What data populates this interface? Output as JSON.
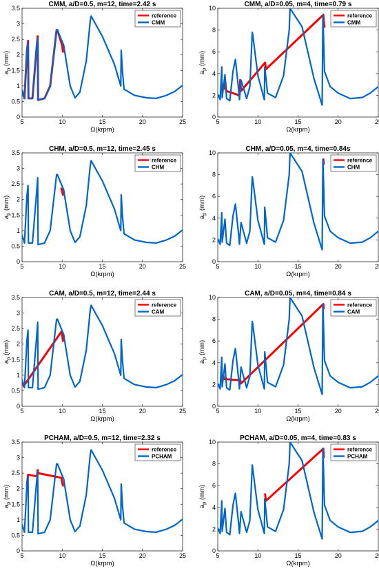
{
  "chart_data": [
    {
      "type": "line",
      "title": "CMM, a/D=0.5, m=12, time=2.42 s",
      "xlabel": "Ω(krpm)",
      "ylabel": "a_p (mm)",
      "xlim": [
        5,
        25
      ],
      "ylim": [
        0,
        3.5
      ],
      "xticks": [
        5,
        10,
        15,
        20,
        25
      ],
      "yticks": [
        0,
        0.5,
        1,
        1.5,
        2,
        2.5,
        3,
        3.5
      ],
      "grid": false,
      "legend_position": "top-right",
      "series": [
        {
          "name": "reference",
          "color": "#ff0000",
          "x": [
            5.0,
            5.3,
            5.6,
            5.75,
            5.8,
            6.3,
            6.8,
            6.95,
            7.0,
            7.8,
            8.5,
            9.3,
            9.4,
            10.0,
            10.05,
            10.1
          ],
          "y": [
            0.85,
            0.6,
            2.1,
            2.45,
            0.6,
            0.6,
            2.2,
            2.6,
            0.55,
            0.6,
            1.0,
            2.8,
            2.8,
            2.3,
            2.2,
            2.1
          ]
        },
        {
          "name": "CMM",
          "color": "#0066cc",
          "x": [
            5.0,
            5.3,
            5.6,
            5.75,
            5.8,
            6.3,
            6.8,
            6.95,
            7.0,
            7.8,
            8.5,
            9.3,
            9.4,
            10.2,
            10.25,
            11.0,
            11.6,
            12.2,
            13.0,
            13.5,
            13.6,
            15.0,
            16.5,
            17.3,
            17.35,
            17.5,
            17.7,
            19.0,
            20.5,
            21.7,
            23.0,
            24.0,
            25.0
          ],
          "y": [
            0.85,
            0.6,
            2.1,
            2.4,
            0.6,
            0.6,
            2.2,
            2.55,
            0.55,
            0.6,
            1.0,
            2.8,
            2.8,
            2.3,
            2.2,
            1.0,
            0.62,
            0.8,
            1.8,
            3.1,
            3.25,
            2.6,
            1.7,
            1.0,
            2.15,
            1.5,
            0.9,
            0.7,
            0.62,
            0.6,
            0.7,
            0.82,
            1.02
          ]
        }
      ]
    },
    {
      "type": "line",
      "title": "CMM, a/D=0.05, m=4, time=0.79 s",
      "xlabel": "Ω(krpm)",
      "ylabel": "a_p (mm)",
      "xlim": [
        5,
        25
      ],
      "ylim": [
        0,
        10
      ],
      "xticks": [
        5,
        10,
        15,
        20,
        25
      ],
      "yticks": [
        0,
        2,
        4,
        6,
        8,
        10
      ],
      "grid": false,
      "legend_position": "top-right",
      "series": [
        {
          "name": "reference",
          "color": "#ff0000",
          "x": [
            5.55,
            5.7,
            5.8,
            5.95,
            6.05,
            7.7,
            7.8,
            7.9,
            10.9,
            11.0,
            18.15,
            18.2,
            18.3
          ],
          "y": [
            2.5,
            3.0,
            2.6,
            3.2,
            2.4,
            2.0,
            3.4,
            2.4,
            5.0,
            4.4,
            9.4,
            8.8,
            8.3
          ]
        },
        {
          "name": "CMM",
          "color": "#0066cc",
          "x": [
            5.0,
            5.3,
            5.5,
            5.55,
            5.9,
            6.1,
            6.5,
            6.9,
            7.2,
            7.6,
            7.7,
            7.9,
            8.6,
            9.0,
            9.3,
            9.35,
            10.0,
            10.8,
            10.85,
            11.2,
            12.2,
            13.2,
            13.9,
            14.0,
            15.5,
            17.0,
            18.0,
            18.1,
            18.3,
            19.0,
            20.0,
            21.5,
            23.0,
            24.0,
            25.0
          ],
          "y": [
            2.1,
            1.6,
            4.6,
            1.8,
            3.9,
            1.7,
            1.5,
            4.2,
            5.3,
            2.5,
            1.6,
            3.4,
            1.7,
            2.8,
            7.8,
            7.6,
            3.8,
            1.6,
            4.6,
            2.2,
            1.8,
            3.8,
            8.0,
            10.0,
            8.3,
            3.5,
            1.1,
            9.4,
            4.2,
            2.8,
            2.2,
            1.7,
            1.8,
            2.2,
            2.8
          ]
        }
      ]
    },
    {
      "type": "line",
      "title": "CHM, a/D=0.5, m=12, time=2.45 s",
      "xlabel": "Ω(krpm)",
      "ylabel": "a_p (mm)",
      "xlim": [
        5,
        25
      ],
      "ylim": [
        0,
        3.5
      ],
      "xticks": [
        5,
        10,
        15,
        20,
        25
      ],
      "yticks": [
        0,
        0.5,
        1,
        1.5,
        2,
        2.5,
        3,
        3.5
      ],
      "grid": false,
      "legend_position": "top-right",
      "series": [
        {
          "name": "reference",
          "color": "#ff0000",
          "x": [
            9.9,
            10.0,
            10.05,
            10.1
          ],
          "y": [
            2.35,
            2.25,
            2.2,
            2.15
          ]
        },
        {
          "name": "CHM",
          "color": "#0066cc",
          "x": [
            5.0,
            5.3,
            5.6,
            5.75,
            5.8,
            6.3,
            6.8,
            6.95,
            7.0,
            7.8,
            8.5,
            9.3,
            9.4,
            10.2,
            10.25,
            11.0,
            11.6,
            12.2,
            13.0,
            13.5,
            13.6,
            15.0,
            16.5,
            17.3,
            17.35,
            17.5,
            17.7,
            19.0,
            20.5,
            21.7,
            23.0,
            24.0,
            25.0
          ],
          "y": [
            0.85,
            0.6,
            2.1,
            2.45,
            0.6,
            0.6,
            2.2,
            2.7,
            0.55,
            0.6,
            1.0,
            2.8,
            2.8,
            2.3,
            2.2,
            1.0,
            0.62,
            0.8,
            1.8,
            3.1,
            3.25,
            2.6,
            1.7,
            1.0,
            2.15,
            1.5,
            0.9,
            0.7,
            0.62,
            0.6,
            0.7,
            0.82,
            1.02
          ]
        }
      ]
    },
    {
      "type": "line",
      "title": "CHM, a/D=0.05, m=4, time=0.84s",
      "xlabel": "Ω(krpm)",
      "ylabel": "a_p (mm)",
      "xlim": [
        5,
        25
      ],
      "ylim": [
        0,
        10
      ],
      "xticks": [
        5,
        10,
        15,
        20,
        25
      ],
      "yticks": [
        0,
        2,
        4,
        6,
        8,
        10
      ],
      "grid": false,
      "legend_position": "top-right",
      "series": [
        {
          "name": "reference",
          "color": "#ff0000",
          "x": [
            18.15,
            18.2
          ],
          "y": [
            9.4,
            9.0
          ]
        },
        {
          "name": "CHM",
          "color": "#0066cc",
          "x": [
            5.0,
            5.3,
            5.5,
            5.55,
            5.9,
            6.1,
            6.5,
            6.9,
            7.2,
            7.6,
            7.7,
            7.9,
            8.6,
            9.0,
            9.3,
            9.35,
            10.0,
            10.8,
            10.85,
            11.2,
            12.2,
            13.2,
            13.9,
            14.0,
            15.5,
            17.0,
            18.0,
            18.1,
            18.3,
            19.0,
            20.0,
            21.5,
            23.0,
            24.0,
            25.0
          ],
          "y": [
            2.1,
            1.6,
            4.5,
            1.8,
            3.9,
            1.7,
            1.5,
            4.2,
            5.3,
            2.5,
            1.6,
            3.6,
            1.7,
            2.8,
            7.8,
            7.6,
            3.8,
            1.6,
            5.0,
            2.2,
            1.8,
            3.8,
            8.0,
            10.0,
            8.3,
            3.5,
            1.1,
            9.4,
            4.2,
            2.8,
            2.2,
            1.7,
            1.8,
            2.2,
            2.8
          ]
        }
      ]
    },
    {
      "type": "line",
      "title": "CAM, a/D=0.5, m=12, time=2.44 s",
      "xlabel": "Ω(krpm)",
      "ylabel": "a_p (mm)",
      "xlim": [
        5,
        25
      ],
      "ylim": [
        0,
        3.5
      ],
      "xticks": [
        5,
        10,
        15,
        20,
        25
      ],
      "yticks": [
        0,
        0.5,
        1,
        1.5,
        2,
        2.5,
        3,
        3.5
      ],
      "grid": false,
      "legend_position": "top-right",
      "series": [
        {
          "name": "reference",
          "color": "#ff0000",
          "x": [
            5.1,
            5.2,
            9.9,
            10.0,
            10.05,
            10.1
          ],
          "y": [
            0.75,
            0.65,
            2.4,
            2.3,
            2.2,
            2.1
          ]
        },
        {
          "name": "CAM",
          "color": "#0066cc",
          "x": [
            5.0,
            5.3,
            5.6,
            5.75,
            5.8,
            6.3,
            6.8,
            6.95,
            7.0,
            7.8,
            8.5,
            9.3,
            9.4,
            10.2,
            10.25,
            11.0,
            11.6,
            12.2,
            13.0,
            13.5,
            13.6,
            15.0,
            16.5,
            17.3,
            17.35,
            17.5,
            17.7,
            19.0,
            20.5,
            21.7,
            23.0,
            24.0,
            25.0
          ],
          "y": [
            0.85,
            0.6,
            2.1,
            2.45,
            0.6,
            0.6,
            2.2,
            2.7,
            0.55,
            0.6,
            1.0,
            2.8,
            2.8,
            2.3,
            2.2,
            1.0,
            0.62,
            0.8,
            1.8,
            3.1,
            3.25,
            2.6,
            1.7,
            1.0,
            2.15,
            1.5,
            0.9,
            0.7,
            0.62,
            0.6,
            0.7,
            0.82,
            1.02
          ]
        }
      ]
    },
    {
      "type": "line",
      "title": "CAM, a/D=0.05, m=4, time=0.84 s",
      "xlabel": "Ω(krpm)",
      "ylabel": "a_p (mm)",
      "xlim": [
        5,
        25
      ],
      "ylim": [
        0,
        10
      ],
      "xticks": [
        5,
        10,
        15,
        20,
        25
      ],
      "yticks": [
        0,
        2,
        4,
        6,
        8,
        10
      ],
      "grid": false,
      "legend_position": "top-right",
      "series": [
        {
          "name": "reference",
          "color": "#ff0000",
          "x": [
            5.7,
            5.8,
            7.8,
            7.9,
            18.15,
            18.2
          ],
          "y": [
            2.8,
            2.5,
            2.4,
            2.1,
            9.4,
            9.0
          ]
        },
        {
          "name": "CAM",
          "color": "#0066cc",
          "x": [
            5.0,
            5.3,
            5.5,
            5.55,
            5.9,
            6.1,
            6.5,
            6.9,
            7.2,
            7.6,
            7.7,
            7.9,
            8.6,
            9.0,
            9.3,
            9.35,
            10.0,
            10.8,
            10.85,
            11.2,
            12.2,
            13.2,
            13.9,
            14.0,
            15.5,
            17.0,
            18.0,
            18.1,
            18.3,
            19.0,
            20.0,
            21.5,
            23.0,
            24.0,
            25.0
          ],
          "y": [
            2.1,
            1.6,
            4.5,
            1.8,
            3.9,
            1.7,
            1.5,
            4.2,
            5.3,
            2.5,
            1.6,
            3.6,
            1.7,
            2.8,
            7.8,
            7.6,
            3.8,
            1.6,
            5.0,
            2.2,
            1.8,
            3.8,
            8.0,
            10.0,
            8.3,
            3.5,
            1.1,
            9.4,
            4.2,
            2.8,
            2.2,
            1.7,
            1.8,
            2.2,
            2.8
          ]
        }
      ]
    },
    {
      "type": "line",
      "title": "PCHAM, a/D=0.5, m=12, time=2.32 s",
      "xlabel": "Ω(krpm)",
      "ylabel": "a_p (mm)",
      "xlim": [
        5,
        25
      ],
      "ylim": [
        0,
        3.5
      ],
      "xticks": [
        5,
        10,
        15,
        20,
        25
      ],
      "yticks": [
        0,
        0.5,
        1,
        1.5,
        2,
        2.5,
        3,
        3.5
      ],
      "grid": false,
      "legend_position": "top-right",
      "series": [
        {
          "name": "reference",
          "color": "#ff0000",
          "x": [
            5.6,
            5.75,
            6.85,
            6.95,
            7.0,
            9.9,
            10.0,
            10.1
          ],
          "y": [
            2.1,
            2.45,
            2.4,
            2.6,
            2.5,
            2.35,
            2.2,
            2.1
          ]
        },
        {
          "name": "PCHAM",
          "color": "#0066cc",
          "x": [
            5.0,
            5.3,
            5.6,
            5.75,
            5.8,
            6.3,
            6.8,
            6.95,
            7.0,
            7.8,
            8.5,
            9.3,
            9.4,
            10.2,
            10.25,
            11.0,
            11.6,
            12.2,
            13.0,
            13.5,
            13.6,
            15.0,
            16.5,
            17.3,
            17.35,
            17.5,
            17.7,
            19.0,
            20.5,
            21.7,
            23.0,
            24.0,
            25.0
          ],
          "y": [
            0.85,
            0.6,
            2.1,
            2.4,
            0.6,
            0.6,
            2.2,
            2.55,
            0.55,
            0.6,
            1.0,
            2.8,
            2.8,
            2.3,
            2.2,
            1.0,
            0.62,
            0.8,
            1.8,
            3.1,
            3.25,
            2.6,
            1.7,
            1.0,
            2.15,
            1.5,
            0.9,
            0.7,
            0.62,
            0.6,
            0.7,
            0.82,
            1.02
          ]
        }
      ]
    },
    {
      "type": "line",
      "title": "PCHAM, a/D=0.05, m=4, time=0.83 s",
      "xlabel": "Ω(krpm)",
      "ylabel": "a_p (mm)",
      "xlim": [
        5,
        25
      ],
      "ylim": [
        0,
        10
      ],
      "xticks": [
        5,
        10,
        15,
        20,
        25
      ],
      "yticks": [
        0,
        2,
        4,
        6,
        8,
        10
      ],
      "grid": false,
      "legend_position": "top-right",
      "series": [
        {
          "name": "reference",
          "color": "#ff0000",
          "x": [
            10.9,
            11.0,
            18.15,
            18.2
          ],
          "y": [
            5.2,
            4.6,
            9.4,
            8.6
          ]
        },
        {
          "name": "PCHAM",
          "color": "#0066cc",
          "x": [
            5.0,
            5.3,
            5.5,
            5.55,
            5.9,
            6.1,
            6.5,
            6.9,
            7.2,
            7.6,
            7.7,
            7.9,
            8.6,
            9.0,
            9.3,
            9.35,
            10.0,
            10.8,
            10.85,
            11.2,
            12.2,
            13.2,
            13.9,
            14.0,
            15.5,
            17.0,
            18.0,
            18.1,
            18.3,
            19.0,
            20.0,
            21.5,
            23.0,
            24.0,
            25.0
          ],
          "y": [
            2.1,
            1.6,
            4.6,
            1.8,
            3.9,
            1.7,
            1.5,
            4.2,
            5.3,
            2.5,
            1.6,
            3.6,
            1.7,
            2.8,
            7.9,
            7.6,
            3.8,
            1.6,
            4.8,
            2.2,
            1.8,
            3.8,
            8.0,
            10.0,
            8.3,
            3.5,
            1.1,
            9.4,
            4.2,
            2.8,
            2.2,
            1.7,
            1.8,
            2.2,
            2.8
          ]
        }
      ]
    }
  ]
}
